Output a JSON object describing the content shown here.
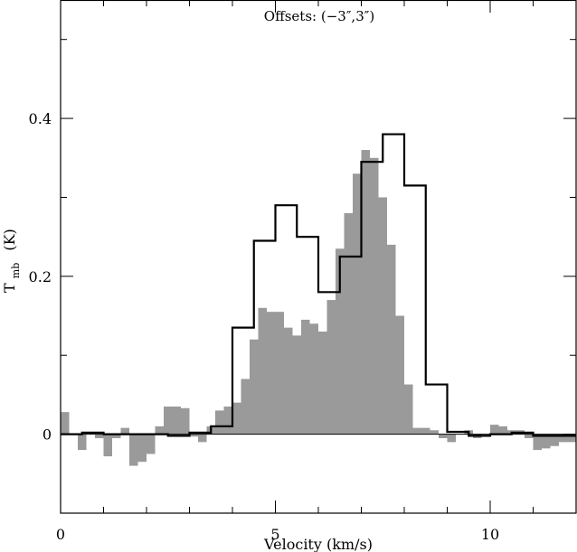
{
  "chart_data": {
    "type": "bar",
    "title": "Offsets: (−3″,3″)",
    "xlabel": "Velocity (km/s)",
    "ylabel_main": "T",
    "ylabel_sub": "mb",
    "ylabel_unit": "(K)",
    "xlim": [
      0,
      12
    ],
    "ylim": [
      -0.1,
      0.55
    ],
    "xticks_major": [
      0,
      5,
      10
    ],
    "xtick_labels": [
      "0",
      "5",
      "10"
    ],
    "xticks_minor_step": 1,
    "yticks_major": [
      0,
      0.2,
      0.4
    ],
    "ytick_labels": [
      "0",
      "0.2",
      "0.4"
    ],
    "yticks_minor_step": 0.1,
    "grid": false,
    "series": [
      {
        "style": "filled-histogram",
        "color": "#9a9a9a",
        "bin_width": 0.2,
        "x": [
          0.0,
          0.2,
          0.4,
          0.6,
          0.8,
          1.0,
          1.2,
          1.4,
          1.6,
          1.8,
          2.0,
          2.2,
          2.4,
          2.6,
          2.8,
          3.0,
          3.2,
          3.4,
          3.6,
          3.8,
          4.0,
          4.2,
          4.4,
          4.6,
          4.8,
          5.0,
          5.2,
          5.4,
          5.6,
          5.8,
          6.0,
          6.2,
          6.4,
          6.6,
          6.8,
          7.0,
          7.2,
          7.4,
          7.6,
          7.8,
          8.0,
          8.2,
          8.4,
          8.6,
          8.8,
          9.0,
          9.2,
          9.4,
          9.6,
          9.8,
          10.0,
          10.2,
          10.4,
          10.6,
          10.8,
          11.0,
          11.2,
          11.4,
          11.6,
          11.8
        ],
        "y": [
          0.028,
          0.0,
          -0.02,
          0.0,
          -0.005,
          -0.028,
          -0.005,
          0.008,
          -0.04,
          -0.035,
          -0.025,
          0.01,
          0.035,
          0.035,
          0.033,
          -0.003,
          -0.01,
          0.01,
          0.03,
          0.035,
          0.04,
          0.07,
          0.12,
          0.16,
          0.155,
          0.155,
          0.135,
          0.125,
          0.145,
          0.14,
          0.13,
          0.17,
          0.235,
          0.28,
          0.33,
          0.36,
          0.35,
          0.3,
          0.24,
          0.15,
          0.063,
          0.008,
          0.008,
          0.005,
          -0.005,
          -0.01,
          0.0,
          0.005,
          -0.005,
          0.0,
          0.012,
          0.01,
          0.005,
          0.005,
          -0.005,
          -0.02,
          -0.018,
          -0.015,
          -0.01,
          -0.01
        ]
      },
      {
        "style": "step-line",
        "color": "#000000",
        "bin_width": 0.5,
        "x": [
          0.0,
          0.5,
          1.0,
          1.5,
          2.0,
          2.5,
          3.0,
          3.5,
          4.0,
          4.5,
          5.0,
          5.5,
          6.0,
          6.5,
          7.0,
          7.5,
          8.0,
          8.5,
          9.0,
          9.5,
          10.0,
          10.5,
          11.0,
          11.5
        ],
        "y": [
          0.0,
          0.002,
          0.0,
          0.0,
          0.0,
          -0.002,
          0.002,
          0.01,
          0.135,
          0.245,
          0.29,
          0.25,
          0.18,
          0.225,
          0.345,
          0.38,
          0.315,
          0.063,
          0.003,
          -0.002,
          0.0,
          0.002,
          -0.002,
          -0.002
        ]
      }
    ]
  }
}
